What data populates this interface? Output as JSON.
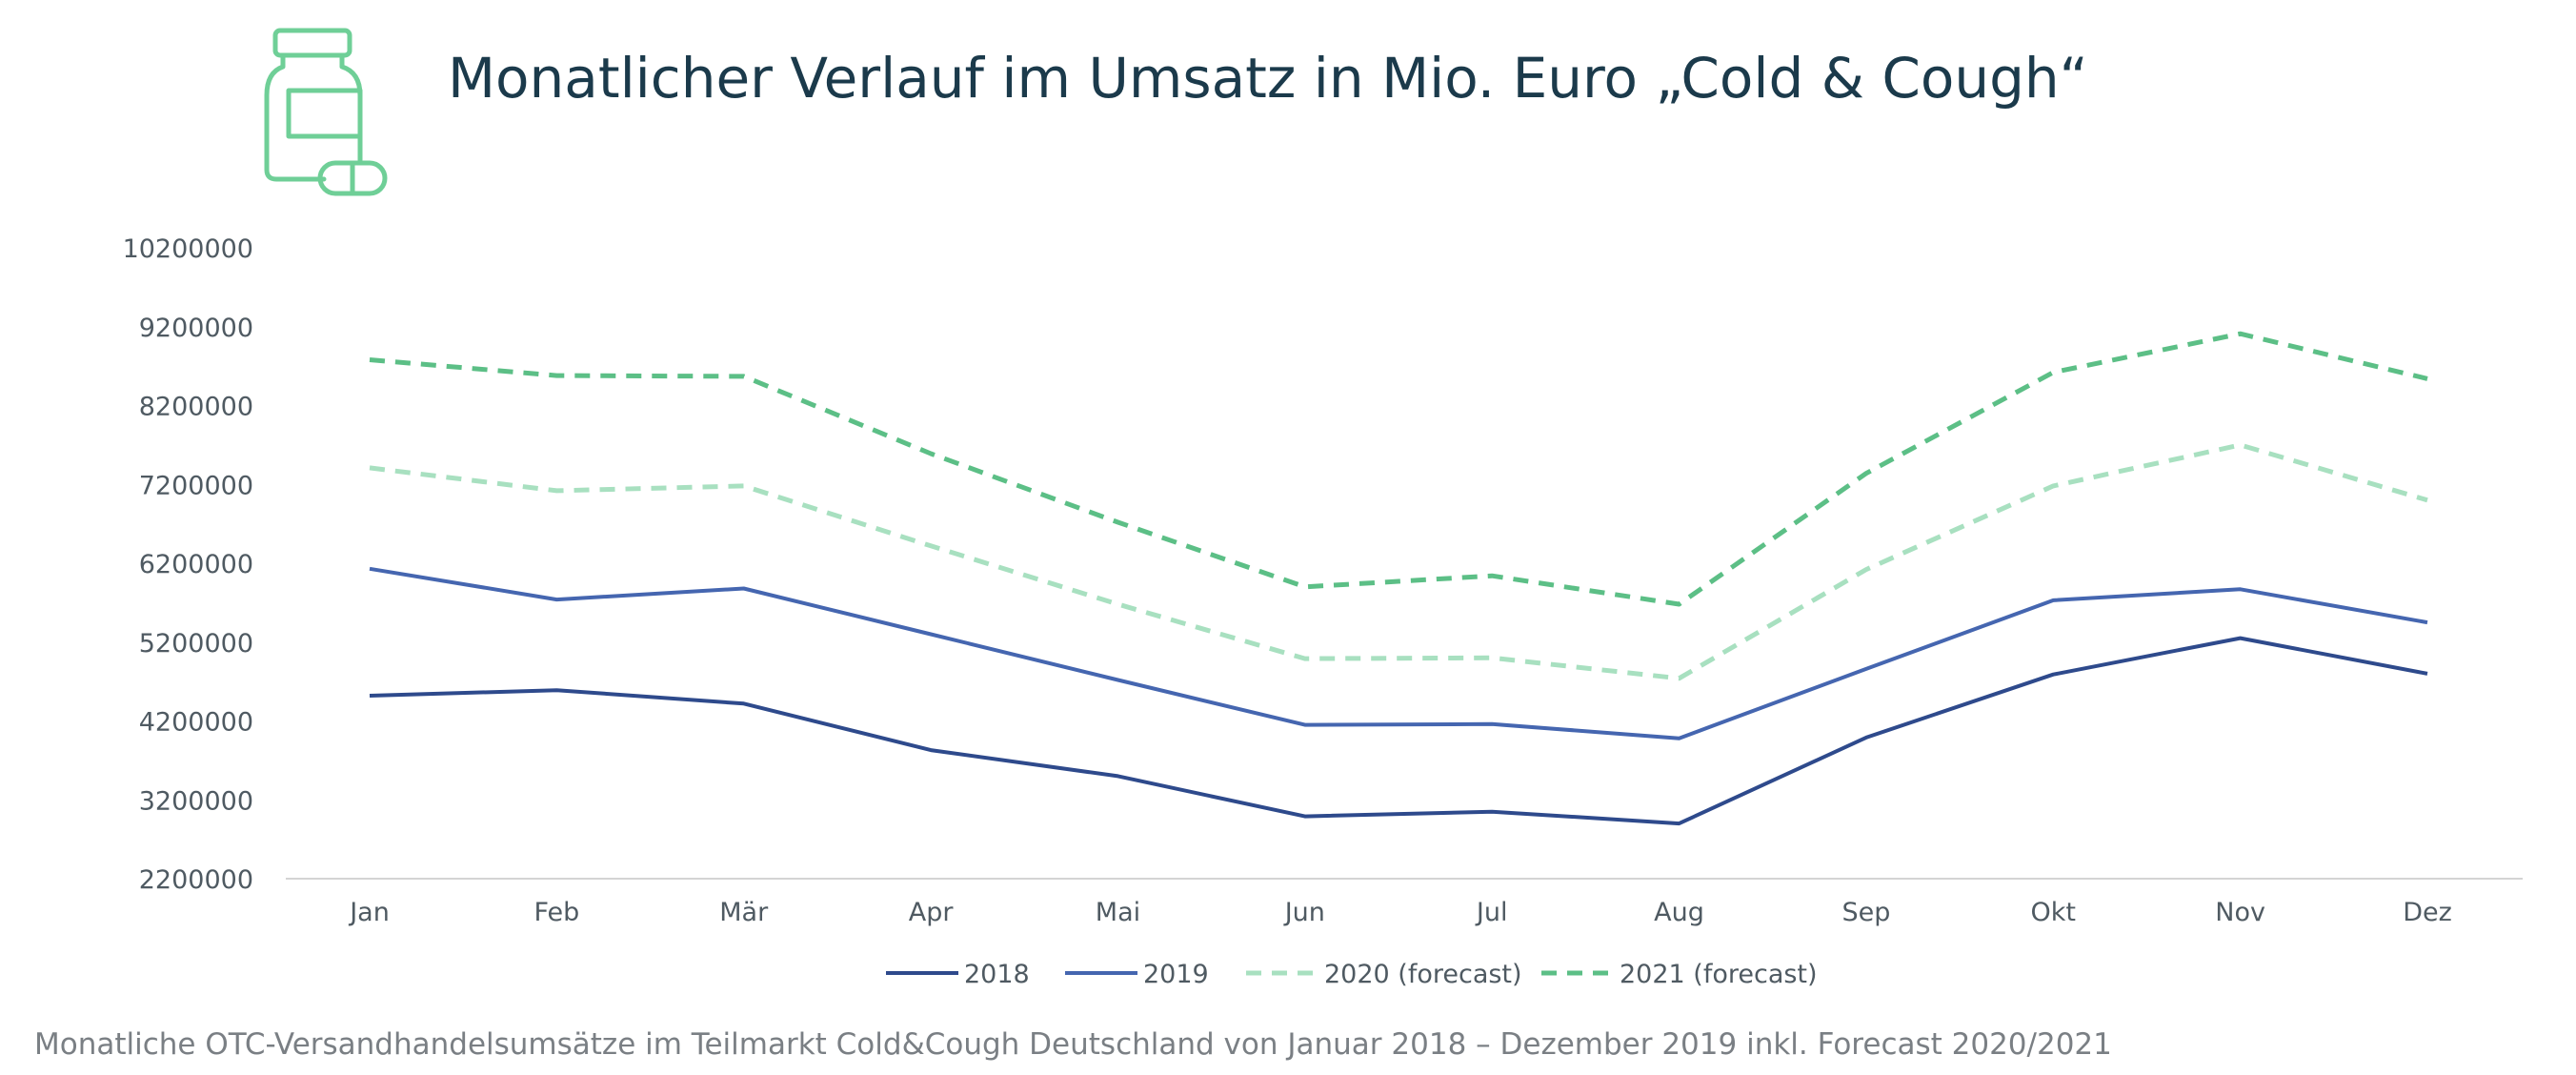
{
  "header": {
    "title": "Monatlicher Verlauf im Umsatz in Mio. Euro „Cold & Cough“",
    "icon": "medicine-bottle-capsule-icon",
    "icon_color": "#6fcf97"
  },
  "caption": "Monatliche OTC-Versandhandelsumsätze im Teilmarkt Cold&Cough Deutschland von Januar 2018 – Dezember 2019 inkl. Forecast 2020/2021",
  "chart_data": {
    "type": "line",
    "title": "Monatlicher Verlauf im Umsatz in Mio. Euro „Cold & Cough“",
    "xlabel": "",
    "ylabel": "",
    "categories": [
      "Jan",
      "Feb",
      "Mär",
      "Apr",
      "Mai",
      "Jun",
      "Jul",
      "Aug",
      "Sep",
      "Okt",
      "Nov",
      "Dez"
    ],
    "ylim": [
      2200000,
      10200000
    ],
    "yticks": [
      "10200000",
      "9200000",
      "8200000",
      "7200000",
      "6200000",
      "5200000",
      "4200000",
      "3200000",
      "2200000"
    ],
    "grid": false,
    "legend": "bottom",
    "series": [
      {
        "name": "2018",
        "color": "#2e4a8c",
        "dash": "solid",
        "values": [
          4520000,
          4590000,
          4420000,
          3830000,
          3500000,
          2990000,
          3050000,
          2900000,
          3990000,
          4790000,
          5250000,
          4800000
        ]
      },
      {
        "name": "2019",
        "color": "#4566b0",
        "dash": "solid",
        "values": [
          6130000,
          5740000,
          5880000,
          5300000,
          4720000,
          4150000,
          4160000,
          3980000,
          4860000,
          5730000,
          5870000,
          5450000
        ]
      },
      {
        "name": "2020 (forecast)",
        "color": "#a8e0c0",
        "dash": "dashed",
        "values": [
          7410000,
          7120000,
          7180000,
          6420000,
          5680000,
          4990000,
          5000000,
          4740000,
          6120000,
          7180000,
          7700000,
          7000000
        ]
      },
      {
        "name": "2021 (forecast)",
        "color": "#5cbf86",
        "dash": "dashed",
        "values": [
          8780000,
          8580000,
          8570000,
          7590000,
          6720000,
          5900000,
          6040000,
          5680000,
          7340000,
          8620000,
          9110000,
          8540000
        ]
      }
    ]
  }
}
